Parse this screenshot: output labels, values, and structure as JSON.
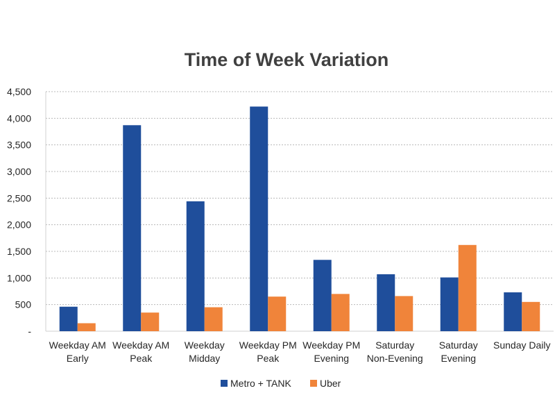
{
  "chart_data": {
    "type": "bar",
    "title": "Time of Week Variation",
    "xlabel": "",
    "ylabel": "",
    "ylim": [
      0,
      4500
    ],
    "yticks": [
      0,
      500,
      1000,
      1500,
      2000,
      2500,
      3000,
      3500,
      4000,
      4500
    ],
    "ytick_labels": [
      "-",
      "500",
      "1,000",
      "1,500",
      "2,000",
      "2,500",
      "3,000",
      "3,500",
      "4,000",
      "4,500"
    ],
    "grid": true,
    "legend_position": "bottom",
    "categories": [
      [
        "Weekday AM",
        "Early"
      ],
      [
        "Weekday AM",
        "Peak"
      ],
      [
        "Weekday",
        "Midday"
      ],
      [
        "Weekday PM",
        "Peak"
      ],
      [
        "Weekday PM",
        "Evening"
      ],
      [
        "Saturday",
        "Non-Evening"
      ],
      [
        "Saturday",
        "Evening"
      ],
      [
        "Sunday Daily"
      ]
    ],
    "series": [
      {
        "name": "Metro + TANK",
        "color": "#1F4E9B",
        "values": [
          460,
          3870,
          2440,
          4220,
          1340,
          1070,
          1010,
          730
        ]
      },
      {
        "name": "Uber",
        "color": "#F0843A",
        "values": [
          150,
          350,
          450,
          650,
          700,
          660,
          1620,
          550
        ]
      }
    ]
  }
}
